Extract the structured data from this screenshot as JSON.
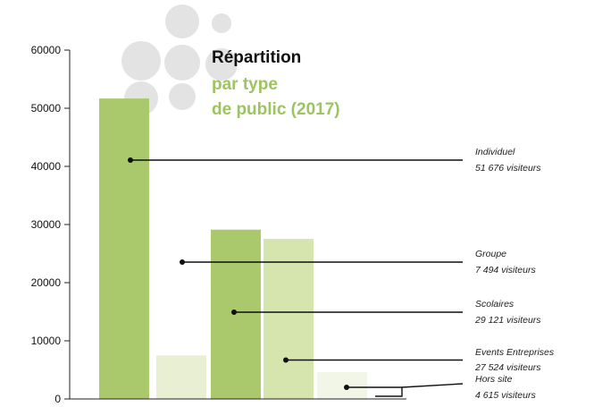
{
  "chart_data": {
    "type": "bar",
    "title": "Répartition",
    "subtitle_lines": [
      "par type",
      "de public (2017)"
    ],
    "ylim": [
      0,
      60000
    ],
    "yticks": [
      "0",
      "10000",
      "20000",
      "30000",
      "40000",
      "50000",
      "60000"
    ],
    "series": [
      {
        "values": [
          51676,
          7494,
          29121,
          27524,
          4615
        ]
      }
    ],
    "bar_colors": [
      "#a9c96c",
      "#e8efd2",
      "#a9c96c",
      "#d6e5ae",
      "#f2f6e6"
    ],
    "annotations": [
      {
        "name": "Individuel",
        "value_text": "51 676 visiteurs"
      },
      {
        "name": "Groupe",
        "value_text": "7 494 visiteurs"
      },
      {
        "name": "Scolaires",
        "value_text": "29 121 visiteurs"
      },
      {
        "name": "Events Entreprises",
        "value_text": "27 524 visiteurs"
      },
      {
        "name": "Hors site",
        "value_text": "4 615 visiteurs"
      }
    ],
    "grid": false,
    "legend": "none"
  },
  "colors": {
    "accent": "#9dc45f",
    "decor_circles": "#e3e3e3",
    "leader_line": "#111111"
  }
}
